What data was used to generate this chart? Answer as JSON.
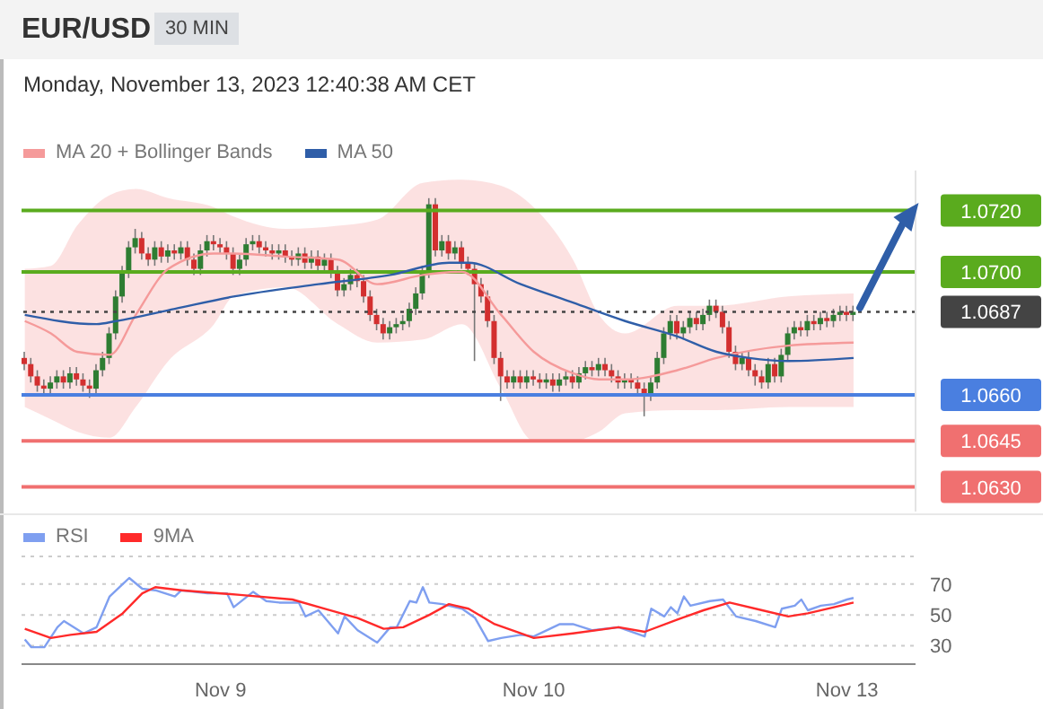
{
  "chart_data": [
    {
      "type": "candlestick",
      "title": "EUR/USD",
      "subtitle": "Monday, November 13, 2023 12:40:38 AM CET",
      "annotations": [
        "30 MIN"
      ],
      "legend": "top left",
      "tick_labels": "y",
      "ylim": [
        1.0622,
        1.0733
      ],
      "yticks": [
        {
          "value": 1.072,
          "label": "1.0720"
        },
        {
          "value": 1.07,
          "label": "1.0700"
        },
        {
          "value": 1.0687,
          "label": "1.0687"
        },
        {
          "value": 1.066,
          "label": "1.0660"
        },
        {
          "value": 1.0645,
          "label": "1.0645"
        },
        {
          "value": 1.063,
          "label": "1.0630"
        }
      ],
      "categories": [
        null,
        null,
        null,
        null,
        null,
        null,
        null,
        null,
        null,
        null,
        null,
        null,
        null,
        null,
        null,
        null,
        null,
        null,
        null,
        null,
        null,
        null,
        null,
        null,
        null,
        null,
        null,
        null,
        null,
        null,
        null,
        null,
        null,
        null,
        null,
        null,
        null,
        null,
        null,
        null,
        null,
        null,
        null,
        null,
        null,
        null,
        null,
        null,
        null,
        null,
        null,
        null,
        null,
        null,
        null,
        null,
        null,
        null,
        null,
        null,
        null,
        null,
        null,
        null,
        null,
        null,
        null,
        null,
        null,
        null,
        null,
        null,
        null,
        null,
        null,
        null,
        null,
        null,
        null,
        null,
        null,
        null,
        null,
        null,
        null,
        null,
        null,
        null,
        null,
        null,
        null,
        null,
        null,
        null,
        null,
        null,
        null,
        null,
        null,
        null,
        null,
        null,
        null,
        null,
        null,
        null,
        null,
        null,
        null,
        null,
        null,
        null,
        null,
        null,
        null,
        null,
        null,
        null,
        null,
        null,
        null,
        null,
        null,
        null,
        null,
        null,
        null,
        null,
        null,
        null,
        null,
        null,
        null,
        null,
        null,
        null,
        null
      ],
      "ohlc": [
        [
          1.0672,
          1.0674,
          1.0668,
          1.067
        ],
        [
          1.067,
          1.0672,
          1.0664,
          1.0666
        ],
        [
          1.0666,
          1.0668,
          1.0661,
          1.0663
        ],
        [
          1.0663,
          1.0665,
          1.066,
          1.0662
        ],
        [
          1.0662,
          1.0666,
          1.066,
          1.0664
        ],
        [
          1.0664,
          1.0668,
          1.0662,
          1.0666
        ],
        [
          1.0666,
          1.0668,
          1.0662,
          1.0664
        ],
        [
          1.0664,
          1.0669,
          1.0662,
          1.0667
        ],
        [
          1.0667,
          1.0669,
          1.0663,
          1.0665
        ],
        [
          1.0665,
          1.0667,
          1.0661,
          1.0663
        ],
        [
          1.0663,
          1.0665,
          1.0659,
          1.0662
        ],
        [
          1.0662,
          1.067,
          1.066,
          1.0668
        ],
        [
          1.0668,
          1.0674,
          1.0666,
          1.0672
        ],
        [
          1.0672,
          1.0682,
          1.067,
          1.068
        ],
        [
          1.068,
          1.0694,
          1.0678,
          1.0692
        ],
        [
          1.0692,
          1.0702,
          1.069,
          1.07
        ],
        [
          1.07,
          1.071,
          1.0698,
          1.0708
        ],
        [
          1.0708,
          1.0714,
          1.0706,
          1.0711
        ],
        [
          1.0711,
          1.0713,
          1.0704,
          1.0706
        ],
        [
          1.0706,
          1.0708,
          1.0702,
          1.0704
        ],
        [
          1.0704,
          1.071,
          1.0702,
          1.0708
        ],
        [
          1.0708,
          1.071,
          1.0703,
          1.0705
        ],
        [
          1.0705,
          1.0709,
          1.0703,
          1.0707
        ],
        [
          1.0707,
          1.0709,
          1.0704,
          1.0706
        ],
        [
          1.0706,
          1.071,
          1.0704,
          1.0708
        ],
        [
          1.0708,
          1.071,
          1.0702,
          1.0704
        ],
        [
          1.0704,
          1.0706,
          1.0699,
          1.0701
        ],
        [
          1.0701,
          1.0709,
          1.0699,
          1.0707
        ],
        [
          1.0707,
          1.0712,
          1.0705,
          1.071
        ],
        [
          1.071,
          1.0712,
          1.0707,
          1.0709
        ],
        [
          1.0709,
          1.0711,
          1.0706,
          1.0708
        ],
        [
          1.0708,
          1.071,
          1.0704,
          1.0706
        ],
        [
          1.0706,
          1.0708,
          1.0699,
          1.0701
        ],
        [
          1.0701,
          1.0706,
          1.0699,
          1.0704
        ],
        [
          1.0704,
          1.0711,
          1.0702,
          1.0709
        ],
        [
          1.0709,
          1.0712,
          1.0707,
          1.071
        ],
        [
          1.071,
          1.0712,
          1.0706,
          1.0708
        ],
        [
          1.0708,
          1.071,
          1.0705,
          1.0707
        ],
        [
          1.0707,
          1.0709,
          1.0704,
          1.0706
        ],
        [
          1.0706,
          1.0709,
          1.0704,
          1.0707
        ],
        [
          1.0707,
          1.0709,
          1.0703,
          1.0705
        ],
        [
          1.0705,
          1.0707,
          1.0702,
          1.0704
        ],
        [
          1.0704,
          1.0708,
          1.0702,
          1.0706
        ],
        [
          1.0706,
          1.0708,
          1.0701,
          1.0703
        ],
        [
          1.0703,
          1.0707,
          1.0701,
          1.0705
        ],
        [
          1.0705,
          1.0707,
          1.07,
          1.0702
        ],
        [
          1.0702,
          1.0706,
          1.07,
          1.0704
        ],
        [
          1.0704,
          1.0706,
          1.0698,
          1.07
        ],
        [
          1.07,
          1.0702,
          1.0692,
          1.0694
        ],
        [
          1.0694,
          1.0698,
          1.0692,
          1.0696
        ],
        [
          1.0696,
          1.0701,
          1.0694,
          1.0699
        ],
        [
          1.0699,
          1.0701,
          1.0695,
          1.0697
        ],
        [
          1.0697,
          1.0699,
          1.069,
          1.0692
        ],
        [
          1.0692,
          1.0694,
          1.0684,
          1.0686
        ],
        [
          1.0686,
          1.0688,
          1.0681,
          1.0683
        ],
        [
          1.0683,
          1.0685,
          1.0678,
          1.068
        ],
        [
          1.068,
          1.0684,
          1.0678,
          1.0682
        ],
        [
          1.0682,
          1.0685,
          1.068,
          1.0683
        ],
        [
          1.0683,
          1.0686,
          1.0681,
          1.0684
        ],
        [
          1.0684,
          1.069,
          1.0682,
          1.0688
        ],
        [
          1.0688,
          1.0695,
          1.0686,
          1.0693
        ],
        [
          1.0693,
          1.0702,
          1.0691,
          1.07
        ],
        [
          1.07,
          1.0724,
          1.0698,
          1.0722
        ],
        [
          1.0722,
          1.0724,
          1.0705,
          1.0707
        ],
        [
          1.0707,
          1.0712,
          1.0705,
          1.071
        ],
        [
          1.071,
          1.0712,
          1.0704,
          1.0706
        ],
        [
          1.0706,
          1.071,
          1.0704,
          1.0708
        ],
        [
          1.0708,
          1.071,
          1.0701,
          1.0703
        ],
        [
          1.0703,
          1.0705,
          1.0699,
          1.0701
        ],
        [
          1.0701,
          1.0703,
          1.0671,
          1.0696
        ],
        [
          1.0696,
          1.0698,
          1.069,
          1.0692
        ],
        [
          1.0692,
          1.0694,
          1.0682,
          1.0684
        ],
        [
          1.0684,
          1.0686,
          1.067,
          1.0672
        ],
        [
          1.0672,
          1.0674,
          1.0658,
          1.0666
        ],
        [
          1.0666,
          1.0668,
          1.0662,
          1.0664
        ],
        [
          1.0664,
          1.0668,
          1.0662,
          1.0666
        ],
        [
          1.0666,
          1.0668,
          1.0662,
          1.0664
        ],
        [
          1.0664,
          1.0668,
          1.0662,
          1.0666
        ],
        [
          1.0666,
          1.0668,
          1.0663,
          1.0665
        ],
        [
          1.0665,
          1.0667,
          1.0662,
          1.0664
        ],
        [
          1.0664,
          1.0667,
          1.0662,
          1.0665
        ],
        [
          1.0665,
          1.0667,
          1.0661,
          1.0663
        ],
        [
          1.0663,
          1.0667,
          1.0661,
          1.0665
        ],
        [
          1.0665,
          1.0668,
          1.0663,
          1.0666
        ],
        [
          1.0666,
          1.0668,
          1.0662,
          1.0664
        ],
        [
          1.0664,
          1.0669,
          1.0662,
          1.0667
        ],
        [
          1.0667,
          1.0671,
          1.0665,
          1.0669
        ],
        [
          1.0669,
          1.0671,
          1.0666,
          1.0668
        ],
        [
          1.0668,
          1.0672,
          1.0666,
          1.067
        ],
        [
          1.067,
          1.0672,
          1.0666,
          1.0668
        ],
        [
          1.0668,
          1.067,
          1.0664,
          1.0666
        ],
        [
          1.0666,
          1.0668,
          1.0662,
          1.0664
        ],
        [
          1.0664,
          1.0667,
          1.0662,
          1.0665
        ],
        [
          1.0665,
          1.0667,
          1.0662,
          1.0664
        ],
        [
          1.0664,
          1.0666,
          1.066,
          1.0662
        ],
        [
          1.0662,
          1.0664,
          1.0653,
          1.066
        ],
        [
          1.066,
          1.0666,
          1.0658,
          1.0664
        ],
        [
          1.0664,
          1.0674,
          1.0662,
          1.0672
        ],
        [
          1.0672,
          1.0682,
          1.067,
          1.068
        ],
        [
          1.068,
          1.0686,
          1.0678,
          1.0684
        ],
        [
          1.0684,
          1.0686,
          1.0678,
          1.068
        ],
        [
          1.068,
          1.0684,
          1.0678,
          1.0682
        ],
        [
          1.0682,
          1.0687,
          1.068,
          1.0685
        ],
        [
          1.0685,
          1.0687,
          1.0681,
          1.0683
        ],
        [
          1.0683,
          1.0688,
          1.0681,
          1.0686
        ],
        [
          1.0686,
          1.0691,
          1.0684,
          1.0689
        ],
        [
          1.0689,
          1.0691,
          1.0685,
          1.0687
        ],
        [
          1.0687,
          1.0689,
          1.068,
          1.0682
        ],
        [
          1.0682,
          1.0684,
          1.0672,
          1.0674
        ],
        [
          1.0674,
          1.0676,
          1.0668,
          1.067
        ],
        [
          1.067,
          1.0674,
          1.0668,
          1.0672
        ],
        [
          1.0672,
          1.0674,
          1.0666,
          1.0668
        ],
        [
          1.0668,
          1.067,
          1.0663,
          1.0666
        ],
        [
          1.0666,
          1.0668,
          1.0662,
          1.0664
        ],
        [
          1.0664,
          1.0672,
          1.0662,
          1.067
        ],
        [
          1.067,
          1.0672,
          1.0664,
          1.0666
        ],
        [
          1.0666,
          1.0675,
          1.0664,
          1.0673
        ],
        [
          1.0673,
          1.0682,
          1.0671,
          1.068
        ],
        [
          1.068,
          1.0684,
          1.0678,
          1.0682
        ],
        [
          1.0682,
          1.0684,
          1.0679,
          1.0681
        ],
        [
          1.0681,
          1.0686,
          1.0679,
          1.0684
        ],
        [
          1.0684,
          1.0686,
          1.0681,
          1.0683
        ],
        [
          1.0683,
          1.0687,
          1.0681,
          1.0685
        ],
        [
          1.0685,
          1.0687,
          1.0682,
          1.0684
        ],
        [
          1.0684,
          1.0688,
          1.0682,
          1.0686
        ],
        [
          1.0686,
          1.0689,
          1.0684,
          1.0687
        ],
        [
          1.0687,
          1.0689,
          1.0684,
          1.0686
        ],
        [
          1.0686,
          1.0689,
          1.0684,
          1.0687
        ],
        null,
        null,
        null,
        null,
        null,
        null,
        null,
        null,
        null
      ],
      "colors": [
        "#d32f2f",
        "#d32f2f",
        "#d32f2f",
        "#d32f2f",
        "#2e7d32",
        "#2e7d32",
        "#d32f2f",
        "#2e7d32",
        "#d32f2f",
        "#d32f2f",
        "#d32f2f",
        "#2e7d32",
        "#2e7d32",
        "#2e7d32",
        "#2e7d32",
        "#2e7d32",
        "#2e7d32",
        "#2e7d32",
        "#d32f2f",
        "#d32f2f",
        "#2e7d32",
        "#d32f2f",
        "#2e7d32",
        "#d32f2f",
        "#2e7d32",
        "#d32f2f",
        "#d32f2f",
        "#2e7d32",
        "#2e7d32",
        "#d32f2f",
        "#d32f2f",
        "#d32f2f",
        "#d32f2f",
        "#2e7d32",
        "#2e7d32",
        "#2e7d32",
        "#d32f2f",
        "#d32f2f",
        "#d32f2f",
        "#2e7d32",
        "#d32f2f",
        "#d32f2f",
        "#2e7d32",
        "#d32f2f",
        "#2e7d32",
        "#d32f2f",
        "#2e7d32",
        "#d32f2f",
        "#d32f2f",
        "#2e7d32",
        "#2e7d32",
        "#d32f2f",
        "#d32f2f",
        "#d32f2f",
        "#d32f2f",
        "#d32f2f",
        "#2e7d32",
        "#2e7d32",
        "#2e7d32",
        "#2e7d32",
        "#2e7d32",
        "#2e7d32",
        "#2e7d32",
        "#d32f2f",
        "#2e7d32",
        "#d32f2f",
        "#2e7d32",
        "#d32f2f",
        "#d32f2f",
        "#d32f2f",
        "#d32f2f",
        "#d32f2f",
        "#d32f2f",
        "#d32f2f",
        "#d32f2f",
        "#2e7d32",
        "#d32f2f",
        "#2e7d32",
        "#d32f2f",
        "#d32f2f",
        "#2e7d32",
        "#d32f2f",
        "#2e7d32",
        "#2e7d32",
        "#d32f2f",
        "#2e7d32",
        "#2e7d32",
        "#d32f2f",
        "#2e7d32",
        "#d32f2f",
        "#d32f2f",
        "#d32f2f",
        "#2e7d32",
        "#d32f2f",
        "#d32f2f",
        "#d32f2f",
        "#2e7d32",
        "#2e7d32",
        "#2e7d32",
        "#2e7d32",
        "#d32f2f",
        "#2e7d32",
        "#2e7d32",
        "#d32f2f",
        "#2e7d32",
        "#2e7d32",
        "#d32f2f",
        "#d32f2f",
        "#d32f2f",
        "#d32f2f",
        "#2e7d32",
        "#d32f2f",
        "#d32f2f",
        "#d32f2f",
        "#2e7d32",
        "#d32f2f",
        "#2e7d32",
        "#2e7d32",
        "#2e7d32",
        "#d32f2f",
        "#2e7d32",
        "#d32f2f",
        "#2e7d32",
        "#d32f2f",
        "#2e7d32",
        "#2e7d32",
        "#d32f2f",
        "#2e7d32",
        null,
        null,
        null,
        null,
        null,
        null,
        null,
        null,
        null
      ],
      "series": [
        {
          "type": "line",
          "name": "MA 20 + Bollinger Bands",
          "color": "#f59a9a",
          "values": [
            1.0684,
            null,
            null,
            null,
            1.068,
            null,
            null,
            null,
            1.0674,
            null,
            null,
            null,
            null,
            1.0673,
            null,
            null,
            null,
            1.0686,
            null,
            null,
            null,
            null,
            1.0701,
            null,
            null,
            null,
            null,
            null,
            null,
            1.0706,
            null,
            null,
            1.0706,
            null,
            null,
            null,
            null,
            null,
            null,
            null,
            1.0705,
            null,
            null,
            null,
            null,
            null,
            null,
            null,
            1.0704,
            null,
            null,
            null,
            null,
            null,
            1.0696,
            null,
            null,
            null,
            null,
            null,
            null,
            1.0699,
            null,
            null,
            null,
            null,
            null,
            1.07,
            null,
            null,
            null,
            null,
            null,
            1.0686,
            null,
            null,
            null,
            null,
            1.0674,
            null,
            null,
            null,
            null,
            null,
            1.0667,
            null,
            null,
            null,
            1.0665,
            null,
            null,
            null,
            1.0665,
            null,
            null,
            null,
            null,
            null,
            null,
            null,
            1.0668,
            null,
            null,
            null,
            null,
            null,
            1.0672,
            null,
            null,
            null,
            null,
            null,
            null,
            null,
            null,
            null,
            null,
            1.0676,
            null,
            null,
            null,
            null,
            null,
            null,
            null,
            null,
            null,
            1.0677,
            null,
            null,
            null,
            null,
            null,
            null,
            null,
            null,
            null
          ],
          "upper": [
            1.0701,
            null,
            null,
            null,
            1.0702,
            null,
            null,
            null,
            1.0715,
            null,
            null,
            null,
            null,
            1.0725,
            null,
            null,
            null,
            1.0727,
            null,
            null,
            null,
            null,
            1.0724,
            null,
            null,
            null,
            null,
            null,
            null,
            1.0721,
            null,
            null,
            1.0718,
            null,
            null,
            null,
            null,
            null,
            null,
            null,
            1.0714,
            null,
            null,
            null,
            null,
            null,
            null,
            null,
            1.0715,
            null,
            null,
            null,
            null,
            null,
            1.0717,
            null,
            null,
            null,
            null,
            null,
            null,
            1.0729,
            null,
            null,
            null,
            null,
            null,
            1.073,
            null,
            null,
            null,
            null,
            null,
            1.0728,
            null,
            null,
            null,
            null,
            1.0721,
            null,
            null,
            null,
            null,
            null,
            1.0704,
            null,
            null,
            null,
            1.0686,
            null,
            null,
            null,
            1.068,
            null,
            null,
            null,
            null,
            null,
            null,
            null,
            1.0689,
            null,
            null,
            null,
            null,
            null,
            1.0689,
            null,
            null,
            null,
            null,
            null,
            null,
            null,
            null,
            null,
            null,
            1.0692,
            null,
            null,
            null,
            null,
            null,
            null,
            null,
            null,
            null,
            1.0693,
            null,
            null,
            null,
            null,
            null,
            null,
            null,
            null,
            null
          ],
          "lower": [
            1.0656,
            null,
            null,
            null,
            1.0652,
            null,
            null,
            null,
            1.0648,
            null,
            null,
            null,
            null,
            1.0646,
            null,
            null,
            null,
            1.0656,
            null,
            null,
            null,
            null,
            1.0671,
            null,
            null,
            null,
            null,
            null,
            null,
            1.0683,
            null,
            null,
            1.0692,
            null,
            null,
            null,
            null,
            null,
            null,
            null,
            1.0695,
            null,
            null,
            null,
            null,
            null,
            null,
            null,
            1.0683,
            null,
            null,
            null,
            null,
            null,
            1.0677,
            null,
            null,
            null,
            null,
            null,
            null,
            1.0678,
            null,
            null,
            null,
            null,
            null,
            1.0683,
            null,
            null,
            null,
            null,
            null,
            1.0662,
            null,
            null,
            null,
            null,
            1.0645,
            null,
            null,
            null,
            null,
            null,
            1.0645,
            null,
            null,
            null,
            1.0648,
            null,
            null,
            null,
            1.0654,
            null,
            null,
            null,
            null,
            null,
            null,
            null,
            1.0655,
            null,
            null,
            null,
            null,
            null,
            1.0655,
            null,
            null,
            null,
            null,
            null,
            null,
            null,
            null,
            null,
            null,
            1.0656,
            null,
            null,
            null,
            null,
            null,
            null,
            null,
            null,
            null,
            1.0656,
            null,
            null,
            null,
            null,
            null,
            null,
            null,
            null,
            null
          ]
        },
        {
          "type": "line",
          "name": "MA 50",
          "color": "#2f5ea8",
          "values": [
            1.0686,
            null,
            null,
            null,
            null,
            null,
            null,
            null,
            null,
            null,
            null,
            1.0683,
            null,
            null,
            1.0684,
            null,
            null,
            null,
            null,
            null,
            null,
            null,
            null,
            1.0688,
            null,
            null,
            null,
            null,
            null,
            null,
            null,
            null,
            1.0692,
            null,
            null,
            null,
            null,
            null,
            null,
            null,
            null,
            null,
            null,
            null,
            null,
            1.0696,
            null,
            null,
            null,
            null,
            null,
            null,
            null,
            null,
            null,
            null,
            1.0699,
            null,
            null,
            null,
            null,
            null,
            null,
            null,
            null,
            1.0703,
            null,
            null,
            1.0703,
            null,
            null,
            null,
            null,
            null,
            null,
            null,
            1.0696,
            null,
            null,
            null,
            null,
            null,
            null,
            null,
            1.069,
            null,
            null,
            null,
            null,
            null,
            null,
            null,
            1.0684,
            null,
            null,
            null,
            null,
            null,
            null,
            null,
            1.0679,
            null,
            null,
            null,
            null,
            null,
            1.0674,
            null,
            null,
            null,
            null,
            1.0672,
            null,
            null,
            null,
            null,
            null,
            1.0671,
            null,
            null,
            null,
            null,
            null,
            null,
            null,
            null,
            null,
            1.0672,
            null,
            null,
            null,
            null,
            null,
            null,
            null,
            null,
            null
          ]
        }
      ],
      "ref_lines": [
        {
          "axis": "y",
          "value": 1.072,
          "color": "#5aab1e"
        },
        {
          "axis": "y",
          "value": 1.07,
          "color": "#5aab1e"
        },
        {
          "axis": "y",
          "value": 1.0687,
          "color": "#444444",
          "line_style": "dotted"
        },
        {
          "axis": "y",
          "value": 1.066,
          "color": "#4a7fe0"
        },
        {
          "axis": "y",
          "value": 1.0645,
          "color": "#f07070"
        },
        {
          "axis": "y",
          "value": 1.063,
          "color": "#f07070"
        }
      ]
    },
    {
      "type": "line",
      "legend": "top left",
      "grid": "y",
      "ylim": [
        18,
        88
      ],
      "yticks": [
        30,
        50,
        70
      ],
      "categories": [
        null,
        null,
        null,
        null,
        null,
        null,
        null,
        null,
        null,
        null,
        null,
        null,
        null,
        null,
        null,
        null,
        null,
        null,
        null,
        null,
        null,
        null,
        null,
        null,
        null,
        null,
        null,
        null,
        null,
        null,
        "Nov 9",
        null,
        null,
        null,
        null,
        null,
        null,
        null,
        null,
        null,
        null,
        null,
        null,
        null,
        null,
        null,
        null,
        null,
        null,
        null,
        null,
        null,
        null,
        null,
        null,
        null,
        null,
        null,
        null,
        null,
        null,
        null,
        null,
        null,
        null,
        null,
        null,
        null,
        null,
        null,
        null,
        null,
        null,
        null,
        null,
        null,
        null,
        null,
        "Nov 10",
        null,
        null,
        null,
        null,
        null,
        null,
        null,
        null,
        null,
        null,
        null,
        null,
        null,
        null,
        null,
        null,
        null,
        null,
        null,
        null,
        null,
        null,
        null,
        null,
        null,
        null,
        null,
        null,
        null,
        null,
        null,
        null,
        null,
        null,
        null,
        null,
        null,
        null,
        null,
        null,
        null,
        null,
        null,
        null,
        null,
        null,
        null,
        "Nov 13",
        null,
        null,
        null,
        null,
        null,
        null,
        null,
        null,
        null,
        null
      ],
      "series": [
        {
          "name": "RSI",
          "color": "#7f9ff0",
          "values": [
            34,
            29,
            null,
            29,
            null,
            42,
            46,
            null,
            null,
            38,
            null,
            42,
            null,
            62,
            null,
            70,
            74,
            null,
            67,
            null,
            66,
            null,
            null,
            62,
            66,
            null,
            null,
            null,
            64,
            null,
            null,
            64,
            55,
            null,
            null,
            65,
            null,
            59,
            null,
            58,
            null,
            null,
            58,
            49,
            null,
            53,
            null,
            null,
            38,
            49,
            null,
            40,
            null,
            null,
            32,
            null,
            42,
            42,
            null,
            59,
            58,
            68,
            58,
            null,
            57,
            null,
            null,
            54,
            null,
            48,
            null,
            33,
            null,
            35,
            null,
            null,
            37,
            null,
            36,
            null,
            null,
            null,
            44,
            null,
            44,
            null,
            null,
            40,
            null,
            null,
            null,
            42,
            null,
            null,
            null,
            36,
            54,
            null,
            49,
            55,
            51,
            62,
            56,
            null,
            null,
            59,
            null,
            60,
            null,
            49,
            null,
            null,
            46,
            null,
            null,
            42,
            54,
            null,
            56,
            60,
            53,
            null,
            56,
            null,
            57,
            null,
            60,
            61,
            null,
            null,
            null,
            null,
            null,
            null,
            null,
            null,
            null
          ]
        },
        {
          "name": "9MA",
          "color": "#ff2a2a",
          "values": [
            41,
            null,
            null,
            null,
            35,
            null,
            null,
            37,
            null,
            null,
            null,
            39,
            null,
            null,
            null,
            51,
            null,
            null,
            64,
            null,
            68,
            null,
            null,
            null,
            66,
            null,
            null,
            null,
            null,
            null,
            null,
            null,
            null,
            63,
            null,
            null,
            null,
            null,
            null,
            null,
            null,
            60,
            null,
            null,
            null,
            null,
            54,
            null,
            null,
            null,
            null,
            48,
            null,
            null,
            null,
            41,
            null,
            null,
            42,
            null,
            null,
            null,
            50,
            null,
            null,
            57,
            null,
            null,
            54,
            null,
            null,
            null,
            44,
            null,
            null,
            null,
            38,
            null,
            35,
            null,
            null,
            null,
            null,
            null,
            38,
            null,
            null,
            null,
            null,
            null,
            null,
            42,
            null,
            null,
            null,
            39,
            null,
            null,
            null,
            null,
            47,
            null,
            null,
            null,
            53,
            null,
            null,
            null,
            58,
            null,
            null,
            null,
            null,
            53,
            null,
            null,
            null,
            49,
            null,
            null,
            51,
            null,
            null,
            null,
            55,
            null,
            null,
            58,
            null,
            null,
            null,
            null,
            null,
            null,
            null,
            null,
            null
          ]
        }
      ]
    }
  ]
}
